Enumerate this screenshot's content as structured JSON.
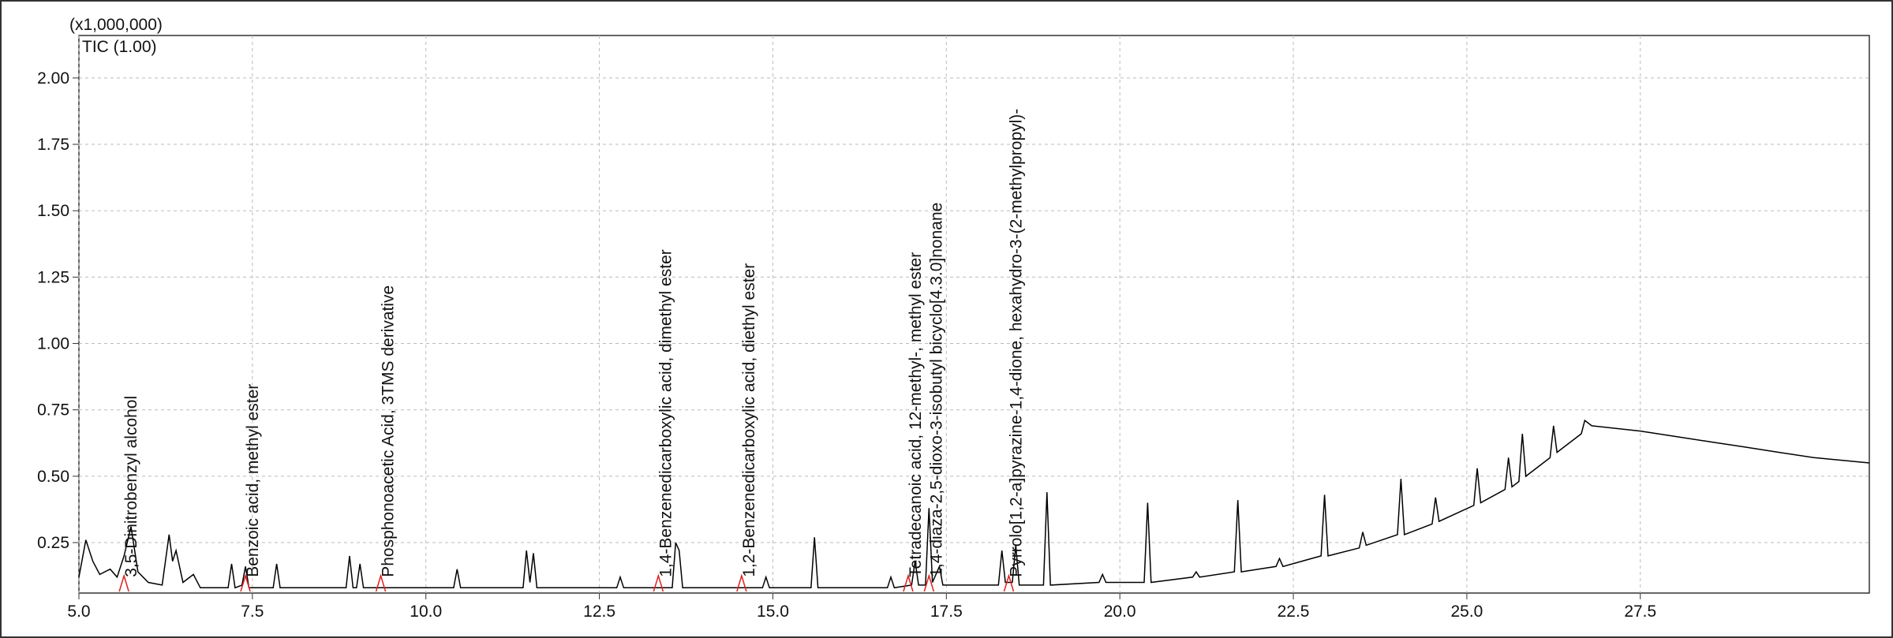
{
  "chart_data": {
    "type": "line",
    "title": "(x1,000,000)",
    "xlim": [
      5,
      30.8
    ],
    "ylim": [
      0.06,
      2.16
    ],
    "xticks": [
      {
        "value": 5,
        "label": "5.0"
      },
      7.5,
      {
        "value": 10,
        "label": "10.0"
      },
      12.5,
      {
        "value": 15,
        "label": "15.0"
      },
      17.5,
      {
        "value": 20,
        "label": "20.0"
      },
      22.5,
      {
        "value": 25,
        "label": "25.0"
      },
      27.5
    ],
    "yticks": [
      0.25,
      {
        "value": 0.5,
        "label": "0.50"
      },
      0.75,
      {
        "value": 1,
        "label": "1.00"
      },
      1.25,
      {
        "value": 1.5,
        "label": "1.50"
      },
      1.75,
      {
        "value": 2,
        "label": "2.00"
      }
    ],
    "grid": true,
    "x": [
      5.0,
      5.1,
      5.2,
      5.3,
      5.45,
      5.55,
      5.65,
      5.75,
      5.85,
      6.0,
      6.2,
      6.3,
      6.35,
      6.4,
      6.5,
      6.65,
      6.75,
      7.15,
      7.2,
      7.25,
      7.35,
      7.4,
      7.45,
      7.8,
      7.85,
      7.9,
      8.85,
      8.9,
      8.95,
      9.0,
      9.05,
      9.1,
      10.4,
      10.45,
      10.5,
      11.4,
      11.45,
      11.5,
      11.55,
      11.6,
      12.75,
      12.8,
      12.85,
      13.55,
      13.6,
      13.65,
      13.7,
      14.85,
      14.9,
      14.95,
      15.55,
      15.6,
      15.65,
      16.65,
      16.7,
      16.75,
      17.0,
      17.05,
      17.1,
      17.2,
      17.25,
      17.3,
      17.4,
      17.45,
      18.25,
      18.3,
      18.35,
      18.45,
      18.5,
      18.55,
      18.9,
      18.95,
      19.0,
      19.7,
      19.75,
      19.8,
      20.35,
      20.4,
      20.45,
      21.05,
      21.1,
      21.15,
      21.65,
      21.7,
      21.75,
      22.25,
      22.3,
      22.35,
      22.9,
      22.95,
      23.0,
      23.45,
      23.5,
      23.55,
      24.0,
      24.05,
      24.1,
      24.5,
      24.55,
      24.6,
      25.1,
      25.15,
      25.2,
      25.55,
      25.6,
      25.65,
      25.75,
      25.8,
      25.85,
      26.2,
      26.25,
      26.3,
      26.65,
      26.7,
      26.8,
      27.5,
      28.0,
      28.5,
      29.0,
      29.5,
      30.0,
      30.8
    ],
    "series": [
      {
        "name": "TIC (1.00)",
        "color": "#000000",
        "values": [
          0.12,
          0.26,
          0.18,
          0.13,
          0.15,
          0.12,
          0.2,
          0.31,
          0.14,
          0.1,
          0.09,
          0.28,
          0.18,
          0.22,
          0.1,
          0.13,
          0.08,
          0.08,
          0.17,
          0.08,
          0.09,
          0.16,
          0.08,
          0.08,
          0.17,
          0.08,
          0.08,
          0.2,
          0.08,
          0.08,
          0.17,
          0.08,
          0.08,
          0.15,
          0.08,
          0.08,
          0.22,
          0.1,
          0.21,
          0.08,
          0.08,
          0.12,
          0.08,
          0.08,
          0.25,
          0.22,
          0.08,
          0.08,
          0.12,
          0.08,
          0.08,
          0.27,
          0.08,
          0.08,
          0.12,
          0.08,
          0.09,
          0.18,
          0.09,
          0.09,
          0.38,
          0.1,
          0.16,
          0.09,
          0.09,
          0.22,
          0.1,
          0.1,
          0.24,
          0.09,
          0.09,
          0.44,
          0.09,
          0.1,
          0.13,
          0.1,
          0.1,
          0.4,
          0.1,
          0.12,
          0.14,
          0.12,
          0.14,
          0.41,
          0.14,
          0.16,
          0.19,
          0.16,
          0.2,
          0.43,
          0.2,
          0.23,
          0.29,
          0.24,
          0.28,
          0.49,
          0.28,
          0.32,
          0.42,
          0.33,
          0.39,
          0.53,
          0.4,
          0.45,
          0.57,
          0.46,
          0.48,
          0.66,
          0.5,
          0.57,
          0.69,
          0.59,
          0.66,
          0.71,
          0.69,
          0.67,
          0.65,
          0.63,
          0.61,
          0.59,
          0.57,
          0.55
        ]
      }
    ],
    "annotations": [
      {
        "text": "3,5-Dinitrobenzyl alcohol",
        "x": 5.65
      },
      {
        "text": "Benzoic acid, methyl ester",
        "x": 7.4
      },
      {
        "text": "Phosphonoacetic Acid, 3TMS derivative",
        "x": 9.35
      },
      {
        "text": "1,4-Benzenedicarboxylic acid, dimethyl ester",
        "x": 13.35
      },
      {
        "text": "1,2-Benzenedicarboxylic acid, diethyl ester",
        "x": 14.55
      },
      {
        "text": "Tetradecanoic acid, 12-methyl-, methyl ester",
        "x": 16.95
      },
      {
        "text": "1,4-diaza-2,5-dioxo-3-isobutyl bicyclo[4.3.0]nonane",
        "x": 17.25
      },
      {
        "text": "Pyrrolo[1,2-a]pyrazine-1,4-dione, hexahydro-3-(2-methylpropyl)-",
        "x": 18.4
      }
    ]
  }
}
